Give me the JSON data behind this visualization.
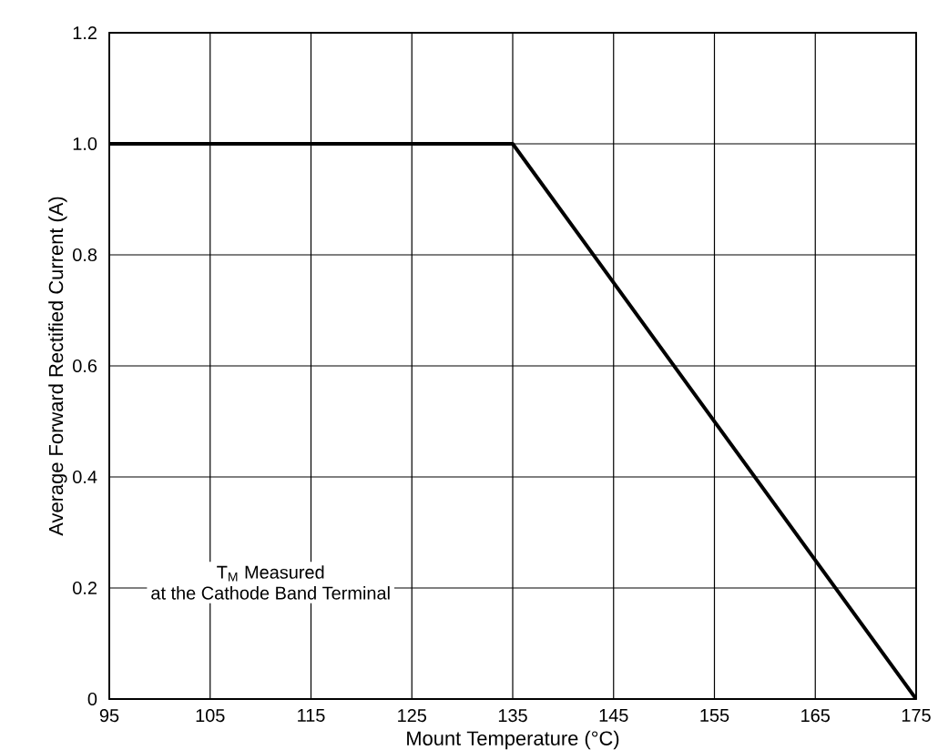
{
  "chart_data": {
    "type": "line",
    "xlabel": "Mount Temperature (°C)",
    "ylabel": "Average Forward Rectified Current (A)",
    "x": [
      95,
      135,
      175
    ],
    "series": [
      {
        "color": "#000000",
        "values": [
          1.0,
          1.0,
          0
        ]
      }
    ],
    "xlim": [
      95,
      175
    ],
    "xticks": [
      95,
      105,
      115,
      125,
      135,
      145,
      155,
      165,
      175
    ],
    "ylim": [
      0,
      1.2
    ],
    "yticks": [
      {
        "value": 0,
        "label": "0"
      },
      0.2,
      0.4,
      0.6,
      0.8,
      {
        "value": 1.0,
        "label": "1.0"
      },
      1.2
    ],
    "grid": true,
    "marker": "none",
    "line_style": "solid",
    "annotations": [
      "T$_{M}$ Measured",
      "at the Cathode Band Terminal"
    ]
  }
}
